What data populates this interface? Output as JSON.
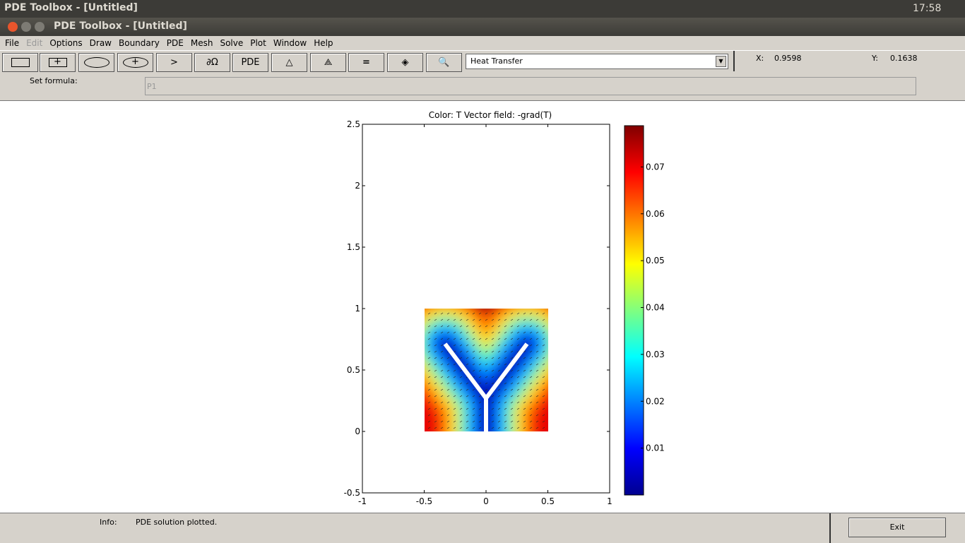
{
  "system_bar": {
    "title": "PDE Toolbox - [Untitled]",
    "clock": "17:58"
  },
  "window": {
    "title": "PDE Toolbox - [Untitled]"
  },
  "menu": [
    "File",
    "Edit",
    "Options",
    "Draw",
    "Boundary",
    "PDE",
    "Mesh",
    "Solve",
    "Plot",
    "Window",
    "Help"
  ],
  "toolbar": {
    "pde_button": "PDE",
    "application": "Heat Transfer",
    "x_label": "X:",
    "x_value": "0.9598",
    "y_label": "Y:",
    "y_value": "0.1638"
  },
  "formula": {
    "label": "Set formula:",
    "value": "P1"
  },
  "plot": {
    "title": "Color: T  Vector field: -grad(T)",
    "xlim": [
      -1,
      1
    ],
    "ylim": [
      -0.5,
      2.5
    ],
    "xticks": [
      -1,
      -0.5,
      0,
      0.5,
      1
    ],
    "yticks": [
      -0.5,
      0,
      0.5,
      1,
      1.5,
      2,
      2.5
    ],
    "colorbar": {
      "clim": [
        0,
        0.0788
      ],
      "ticks": [
        0.01,
        0.02,
        0.03,
        0.04,
        0.05,
        0.06,
        0.07
      ]
    }
  },
  "status": {
    "label": "Info:",
    "message": "PDE solution plotted.",
    "exit_button": "Exit"
  }
}
